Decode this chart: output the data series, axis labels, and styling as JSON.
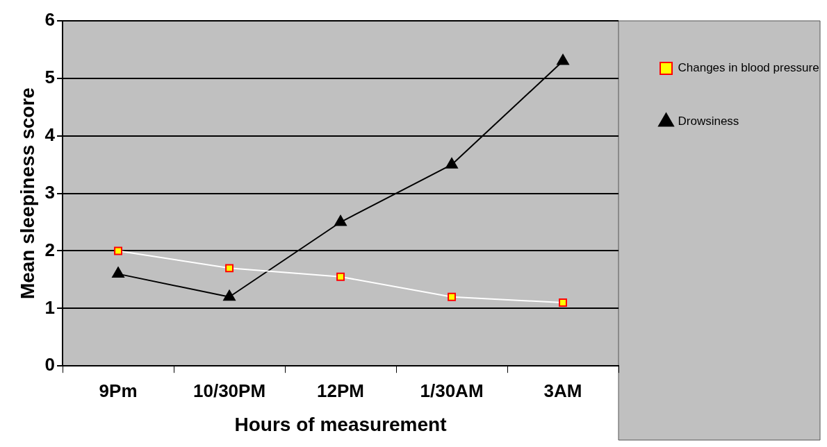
{
  "chart_data": {
    "type": "line",
    "xlabel": "Hours of measurement",
    "ylabel": "Mean sleepiness score",
    "categories": [
      "9Pm",
      "10/30PM",
      "12PM",
      "1/30AM",
      "3AM"
    ],
    "series": [
      {
        "name": "Changes in blood pressure",
        "color": "#ffffff",
        "marker": "square",
        "values": [
          2.0,
          1.7,
          1.55,
          1.2,
          1.1
        ]
      },
      {
        "name": "Drowsiness",
        "color": "#000000",
        "marker": "triangle",
        "values": [
          1.6,
          1.2,
          2.5,
          3.5,
          5.3
        ]
      }
    ],
    "ylim": [
      0,
      6
    ],
    "yticks": [
      0,
      1,
      2,
      3,
      4,
      5,
      6
    ],
    "grid": "y",
    "legend": "right"
  }
}
